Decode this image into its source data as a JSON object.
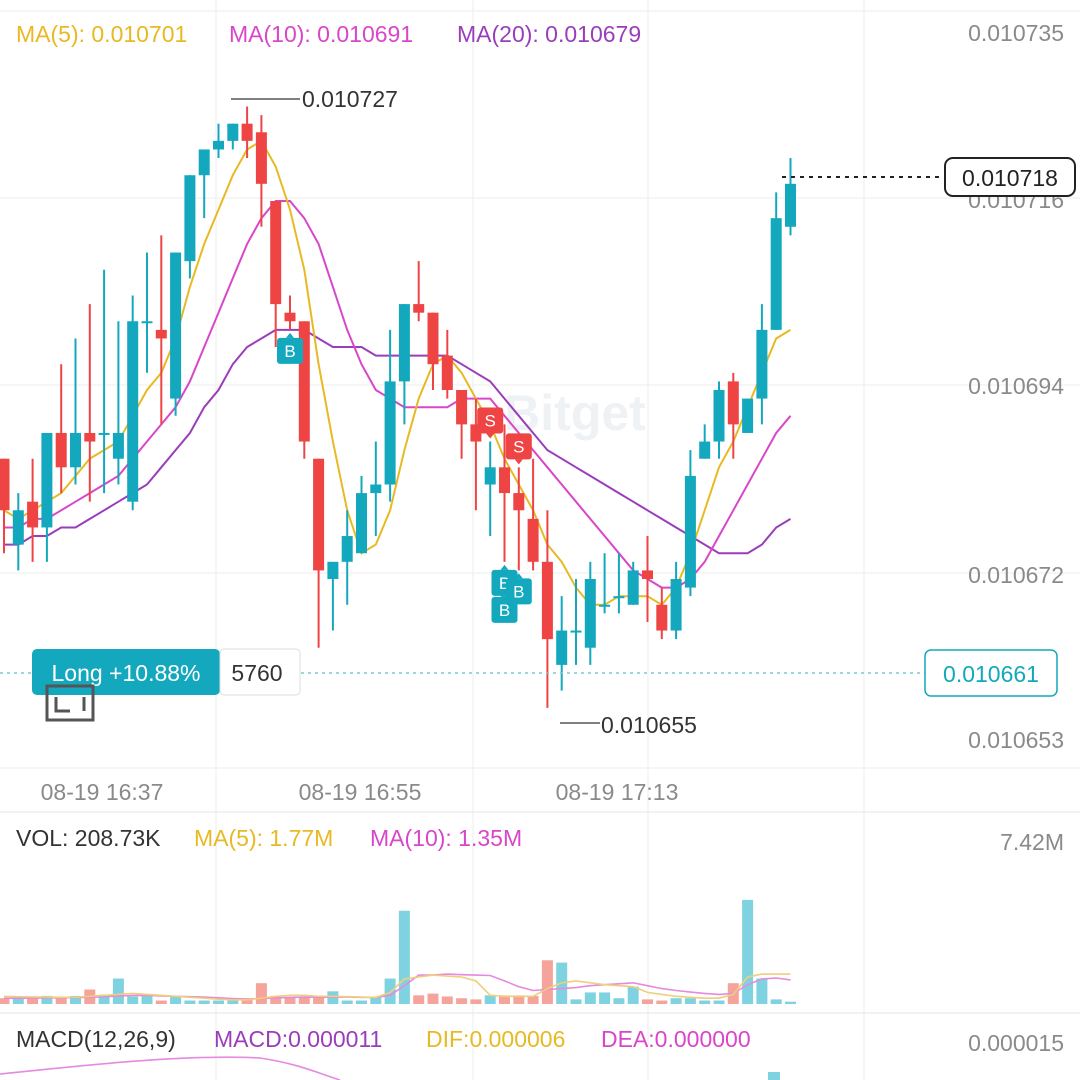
{
  "colors": {
    "up": "#13a8bd",
    "down": "#ef4444",
    "ma5": "#e8b923",
    "ma10": "#d946c9",
    "ma20": "#9b3dba",
    "grid": "#eeeeee",
    "axis_text": "#8a8a8a",
    "dark_text": "#333333",
    "vol_up": "#7fd3e0",
    "vol_down": "#f5a49c",
    "macd_purple": "#9b3dba",
    "macd_dif": "#e8b923",
    "macd_dea": "#d946c9"
  },
  "main_legend": {
    "ma5": "MA(5): 0.010701",
    "ma10": "MA(10): 0.010691",
    "ma20": "MA(20): 0.010679"
  },
  "y_axis_labels": [
    "0.010735",
    "0.010716",
    "0.010694",
    "0.010672",
    "0.010653"
  ],
  "x_axis_labels": [
    "08-19 16:37",
    "08-19 16:55",
    "08-19 17:13"
  ],
  "high_marker": "0.010727",
  "low_marker": "0.010655",
  "last_price": "0.010718",
  "position": {
    "label": "Long +10.88%",
    "size": "5760",
    "entry_price": "0.010661"
  },
  "watermark": "Bitget",
  "volume_legend": {
    "vol": "VOL: 208.73K",
    "ma5": "MA(5): 1.77M",
    "ma10": "MA(10): 1.35M",
    "max": "7.42M"
  },
  "macd_legend": {
    "name": "MACD(12,26,9)",
    "macd": "MACD:0.000011",
    "dif": "DIF:0.000006",
    "dea": "DEA:0.000000",
    "max": "0.000015"
  },
  "trade_markers": [
    {
      "type": "B",
      "candle": 20
    },
    {
      "type": "S",
      "candle": 34
    },
    {
      "type": "S",
      "candle": 36
    },
    {
      "type": "B",
      "candle": 35
    },
    {
      "type": "B",
      "candle": 35
    },
    {
      "type": "B",
      "candle": 36
    }
  ],
  "chart_data": {
    "type": "candlestick",
    "candles": [
      {
        "o": 0.010686,
        "h": 0.010686,
        "l": 0.010675,
        "c": 0.01068
      },
      {
        "o": 0.010676,
        "h": 0.010682,
        "l": 0.010673,
        "c": 0.01068
      },
      {
        "o": 0.010681,
        "h": 0.010686,
        "l": 0.010674,
        "c": 0.010678
      },
      {
        "o": 0.010678,
        "h": 0.010689,
        "l": 0.010674,
        "c": 0.010689
      },
      {
        "o": 0.010689,
        "h": 0.010697,
        "l": 0.010682,
        "c": 0.010685
      },
      {
        "o": 0.010685,
        "h": 0.0107,
        "l": 0.010683,
        "c": 0.010689
      },
      {
        "o": 0.010689,
        "h": 0.010704,
        "l": 0.010681,
        "c": 0.010688
      },
      {
        "o": 0.010689,
        "h": 0.010708,
        "l": 0.010682,
        "c": 0.010689
      },
      {
        "o": 0.010686,
        "h": 0.010702,
        "l": 0.010683,
        "c": 0.010689
      },
      {
        "o": 0.010681,
        "h": 0.010705,
        "l": 0.01068,
        "c": 0.010702
      },
      {
        "o": 0.010702,
        "h": 0.01071,
        "l": 0.010696,
        "c": 0.010702
      },
      {
        "o": 0.010701,
        "h": 0.010712,
        "l": 0.01069,
        "c": 0.0107
      },
      {
        "o": 0.010693,
        "h": 0.01071,
        "l": 0.010691,
        "c": 0.01071
      },
      {
        "o": 0.010709,
        "h": 0.010719,
        "l": 0.010707,
        "c": 0.010719
      },
      {
        "o": 0.010719,
        "h": 0.010722,
        "l": 0.010714,
        "c": 0.010722
      },
      {
        "o": 0.010722,
        "h": 0.010725,
        "l": 0.010721,
        "c": 0.010723
      },
      {
        "o": 0.010723,
        "h": 0.010725,
        "l": 0.010722,
        "c": 0.010725
      },
      {
        "o": 0.010725,
        "h": 0.010727,
        "l": 0.010721,
        "c": 0.010723
      },
      {
        "o": 0.010724,
        "h": 0.010726,
        "l": 0.010713,
        "c": 0.010718
      },
      {
        "o": 0.010716,
        "h": 0.010716,
        "l": 0.010699,
        "c": 0.010704
      },
      {
        "o": 0.010703,
        "h": 0.010705,
        "l": 0.010701,
        "c": 0.010702
      },
      {
        "o": 0.010702,
        "h": 0.010702,
        "l": 0.010686,
        "c": 0.010688
      },
      {
        "o": 0.010686,
        "h": 0.010686,
        "l": 0.010664,
        "c": 0.010673
      },
      {
        "o": 0.010672,
        "h": 0.010674,
        "l": 0.010666,
        "c": 0.010674
      },
      {
        "o": 0.010674,
        "h": 0.01068,
        "l": 0.010669,
        "c": 0.010677
      },
      {
        "o": 0.010675,
        "h": 0.010684,
        "l": 0.010675,
        "c": 0.010682
      },
      {
        "o": 0.010682,
        "h": 0.010688,
        "l": 0.010677,
        "c": 0.010683
      },
      {
        "o": 0.010683,
        "h": 0.010701,
        "l": 0.010681,
        "c": 0.010695
      },
      {
        "o": 0.010695,
        "h": 0.010704,
        "l": 0.01069,
        "c": 0.010704
      },
      {
        "o": 0.010704,
        "h": 0.010709,
        "l": 0.010702,
        "c": 0.010703
      },
      {
        "o": 0.010703,
        "h": 0.010703,
        "l": 0.010694,
        "c": 0.010697
      },
      {
        "o": 0.010698,
        "h": 0.010701,
        "l": 0.010693,
        "c": 0.010694
      },
      {
        "o": 0.010694,
        "h": 0.010694,
        "l": 0.010686,
        "c": 0.01069
      },
      {
        "o": 0.01069,
        "h": 0.010693,
        "l": 0.01068,
        "c": 0.010688
      },
      {
        "o": 0.010683,
        "h": 0.010688,
        "l": 0.010677,
        "c": 0.010685
      },
      {
        "o": 0.010685,
        "h": 0.01069,
        "l": 0.010674,
        "c": 0.010682
      },
      {
        "o": 0.010682,
        "h": 0.010685,
        "l": 0.010673,
        "c": 0.01068
      },
      {
        "o": 0.010679,
        "h": 0.010686,
        "l": 0.010673,
        "c": 0.010674
      },
      {
        "o": 0.010674,
        "h": 0.01068,
        "l": 0.010657,
        "c": 0.010665
      },
      {
        "o": 0.010662,
        "h": 0.01067,
        "l": 0.010659,
        "c": 0.010666
      },
      {
        "o": 0.010666,
        "h": 0.010672,
        "l": 0.010662,
        "c": 0.010666
      },
      {
        "o": 0.010664,
        "h": 0.010674,
        "l": 0.010662,
        "c": 0.010672
      },
      {
        "o": 0.010669,
        "h": 0.010675,
        "l": 0.010668,
        "c": 0.010669
      },
      {
        "o": 0.01067,
        "h": 0.010675,
        "l": 0.010668,
        "c": 0.01067
      },
      {
        "o": 0.010669,
        "h": 0.010674,
        "l": 0.010669,
        "c": 0.010673
      },
      {
        "o": 0.010673,
        "h": 0.010677,
        "l": 0.010667,
        "c": 0.010672
      },
      {
        "o": 0.010669,
        "h": 0.010671,
        "l": 0.010665,
        "c": 0.010666
      },
      {
        "o": 0.010666,
        "h": 0.010674,
        "l": 0.010665,
        "c": 0.010672
      },
      {
        "o": 0.010671,
        "h": 0.010687,
        "l": 0.01067,
        "c": 0.010684
      },
      {
        "o": 0.010686,
        "h": 0.01069,
        "l": 0.010686,
        "c": 0.010688
      },
      {
        "o": 0.010688,
        "h": 0.010695,
        "l": 0.010686,
        "c": 0.010694
      },
      {
        "o": 0.010695,
        "h": 0.010696,
        "l": 0.010686,
        "c": 0.01069
      },
      {
        "o": 0.010689,
        "h": 0.010693,
        "l": 0.010689,
        "c": 0.010693
      },
      {
        "o": 0.010693,
        "h": 0.010704,
        "l": 0.01069,
        "c": 0.010701
      },
      {
        "o": 0.010701,
        "h": 0.010717,
        "l": 0.010701,
        "c": 0.010714
      },
      {
        "o": 0.010713,
        "h": 0.010721,
        "l": 0.010712,
        "c": 0.010718
      }
    ],
    "ma5": [
      0.01068,
      0.010679,
      0.01068,
      0.010681,
      0.010682,
      0.010684,
      0.010686,
      0.010687,
      0.010688,
      0.010691,
      0.010694,
      0.010696,
      0.0107,
      0.010706,
      0.010711,
      0.010715,
      0.010719,
      0.010722,
      0.010723,
      0.01072,
      0.010715,
      0.010708,
      0.010697,
      0.010688,
      0.01068,
      0.010675,
      0.010676,
      0.01068,
      0.010687,
      0.010693,
      0.010697,
      0.010698,
      0.010696,
      0.010693,
      0.01069,
      0.010686,
      0.010683,
      0.01068,
      0.010676,
      0.010674,
      0.010671,
      0.010669,
      0.010669,
      0.01067,
      0.01067,
      0.01067,
      0.010669,
      0.010671,
      0.010675,
      0.01068,
      0.010685,
      0.010688,
      0.010692,
      0.010696,
      0.0107,
      0.010701
    ],
    "ma10": [
      0.010678,
      0.010678,
      0.010679,
      0.010679,
      0.01068,
      0.010681,
      0.010682,
      0.010683,
      0.010684,
      0.010686,
      0.010688,
      0.01069,
      0.010692,
      0.010695,
      0.010699,
      0.010703,
      0.010707,
      0.010711,
      0.010714,
      0.010716,
      0.010716,
      0.010714,
      0.010711,
      0.010706,
      0.010701,
      0.010697,
      0.010694,
      0.010693,
      0.010692,
      0.010692,
      0.010692,
      0.010692,
      0.010693,
      0.010693,
      0.010693,
      0.010691,
      0.010689,
      0.010687,
      0.010685,
      0.010683,
      0.010681,
      0.010679,
      0.010677,
      0.010675,
      0.010673,
      0.010672,
      0.010671,
      0.010671,
      0.010672,
      0.010674,
      0.010677,
      0.01068,
      0.010683,
      0.010686,
      0.010689,
      0.010691
    ],
    "ma20": [
      0.010676,
      0.010676,
      0.010677,
      0.010677,
      0.010678,
      0.010678,
      0.010679,
      0.01068,
      0.010681,
      0.010682,
      0.010683,
      0.010685,
      0.010687,
      0.010689,
      0.010692,
      0.010694,
      0.010697,
      0.010699,
      0.0107,
      0.010701,
      0.010701,
      0.010701,
      0.0107,
      0.010699,
      0.010699,
      0.010699,
      0.010698,
      0.010698,
      0.010698,
      0.010698,
      0.010698,
      0.010698,
      0.010697,
      0.010696,
      0.010695,
      0.010693,
      0.010691,
      0.010689,
      0.010687,
      0.010686,
      0.010685,
      0.010684,
      0.010683,
      0.010682,
      0.010681,
      0.01068,
      0.010679,
      0.010678,
      0.010677,
      0.010676,
      0.010675,
      0.010675,
      0.010675,
      0.010676,
      0.010678,
      0.010679
    ],
    "volume": [
      0.3,
      0.36,
      0.36,
      0.42,
      0.36,
      0.42,
      0.75,
      0.48,
      1.32,
      0.39,
      0.42,
      0.18,
      0.36,
      0.18,
      0.18,
      0.18,
      0.18,
      0.3,
      1.08,
      0.42,
      0.36,
      0.36,
      0.36,
      0.66,
      0.18,
      0.18,
      0.36,
      1.32,
      4.84,
      0.45,
      0.54,
      0.39,
      0.3,
      0.24,
      0.45,
      0.45,
      0.45,
      0.42,
      2.27,
      2.15,
      0.24,
      0.6,
      0.6,
      0.3,
      0.9,
      0.24,
      0.18,
      0.3,
      0.3,
      0.18,
      0.18,
      1.08,
      5.4,
      1.32,
      0.24,
      0.12
    ],
    "vol_ma5": [
      0.4,
      0.38,
      0.37,
      0.36,
      0.35,
      0.35,
      0.4,
      0.45,
      0.5,
      0.55,
      0.5,
      0.45,
      0.4,
      0.35,
      0.3,
      0.25,
      0.22,
      0.22,
      0.3,
      0.4,
      0.45,
      0.45,
      0.4,
      0.4,
      0.38,
      0.36,
      0.34,
      0.6,
      1.3,
      1.4,
      1.5,
      1.45,
      1.4,
      1.2,
      0.45,
      0.4,
      0.4,
      0.4,
      0.8,
      1.1,
      1.2,
      1.1,
      1.0,
      0.95,
      0.9,
      0.6,
      0.5,
      0.4,
      0.35,
      0.3,
      0.3,
      0.5,
      1.4,
      1.55,
      1.55,
      1.55
    ],
    "vol_ma10": [
      0.3,
      0.3,
      0.3,
      0.32,
      0.32,
      0.33,
      0.35,
      0.38,
      0.42,
      0.44,
      0.45,
      0.42,
      0.4,
      0.38,
      0.36,
      0.32,
      0.28,
      0.26,
      0.28,
      0.32,
      0.34,
      0.36,
      0.35,
      0.36,
      0.36,
      0.35,
      0.34,
      0.45,
      0.95,
      1.5,
      1.5,
      1.55,
      1.52,
      1.5,
      1.48,
      1.2,
      0.9,
      0.7,
      0.75,
      0.8,
      0.85,
      0.95,
      1.0,
      1.05,
      1.1,
      0.95,
      0.8,
      0.7,
      0.62,
      0.55,
      0.5,
      0.55,
      1.0,
      1.3,
      1.35,
      1.25
    ],
    "vol_unit": "M",
    "vol_max": 7.42,
    "price_range": [
      0.01065,
      0.010738
    ]
  }
}
